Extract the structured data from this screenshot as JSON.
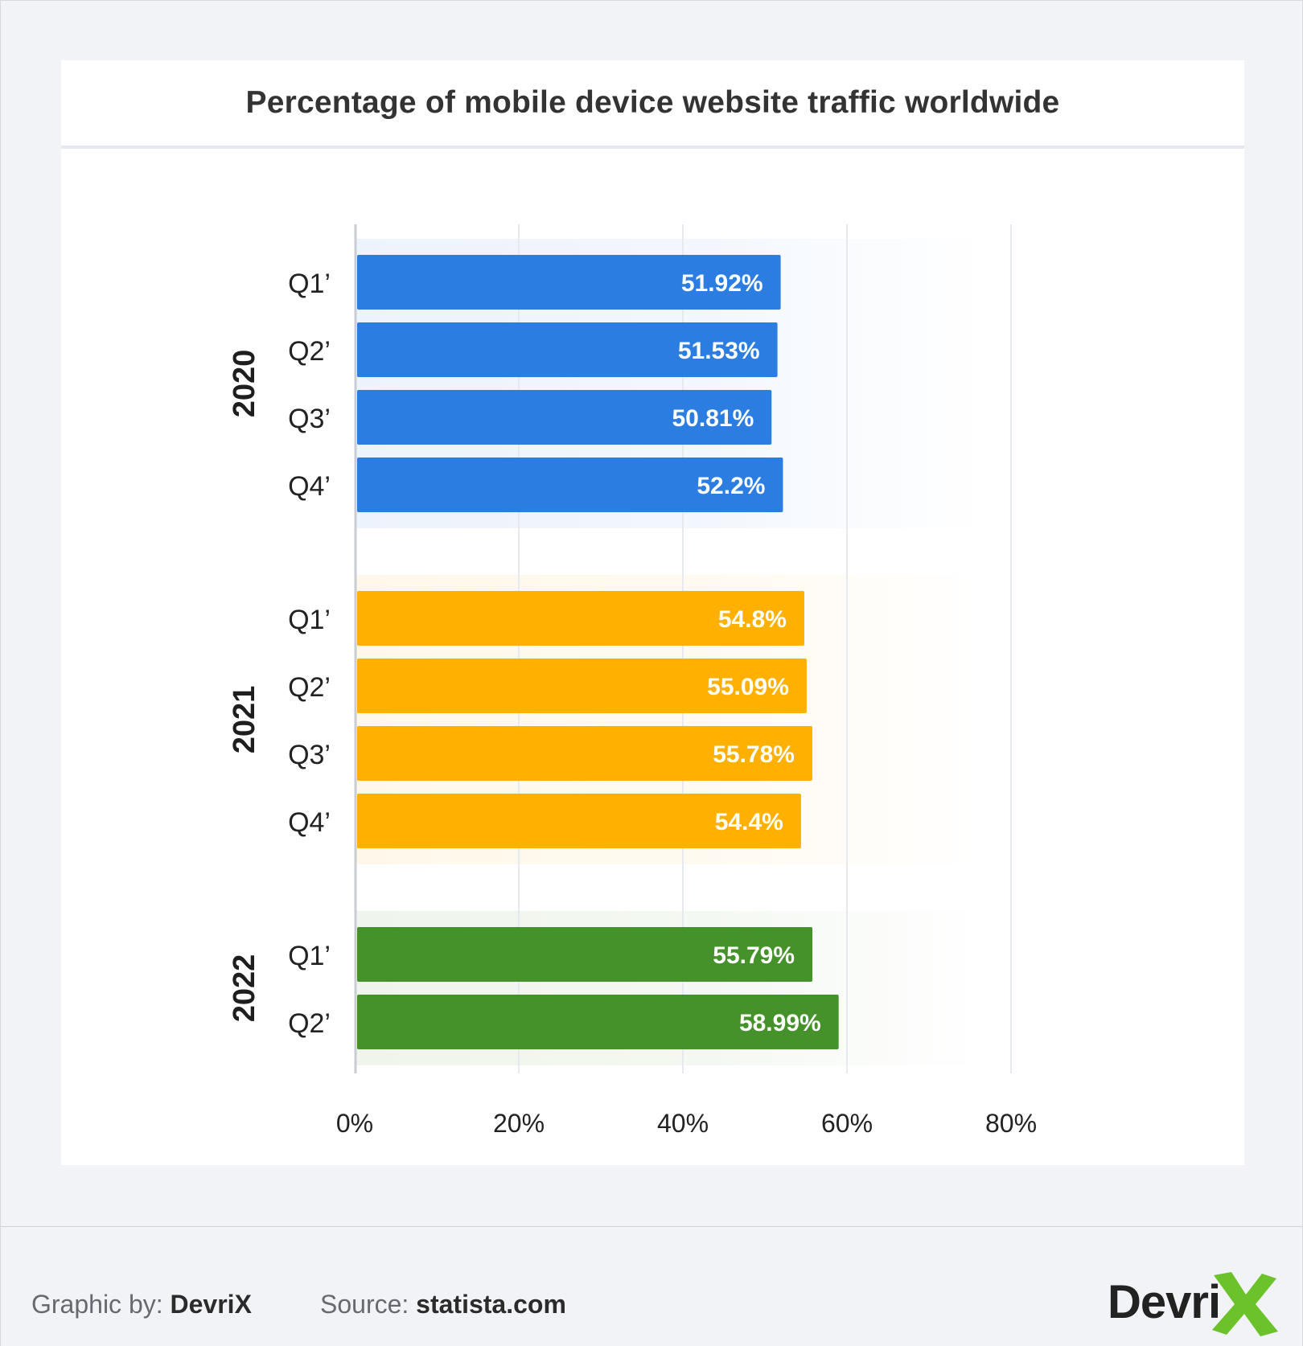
{
  "chart_data": {
    "type": "bar",
    "orientation": "horizontal",
    "title": "Percentage of mobile device website traffic worldwide",
    "groups": [
      {
        "name": "2020",
        "color": "#2b7de1",
        "band_color": "#edf3fc",
        "categories": [
          "Q1’",
          "Q2’",
          "Q3’",
          "Q4’"
        ],
        "values": [
          51.92,
          51.53,
          50.81,
          52.2
        ],
        "labels": [
          "51.92%",
          "51.53%",
          "50.81%",
          "52.2%"
        ]
      },
      {
        "name": "2021",
        "color": "#ffb000",
        "band_color": "#fff8ea",
        "categories": [
          "Q1’",
          "Q2’",
          "Q3’",
          "Q4’"
        ],
        "values": [
          54.8,
          55.09,
          55.78,
          54.4
        ],
        "labels": [
          "54.8%",
          "55.09%",
          "55.78%",
          "54.4%"
        ]
      },
      {
        "name": "2022",
        "color": "#45922a",
        "band_color": "#eff5ec",
        "categories": [
          "Q1’",
          "Q2’"
        ],
        "values": [
          55.79,
          58.99
        ],
        "labels": [
          "55.79%",
          "58.99%"
        ]
      }
    ],
    "x_ticks": [
      "0%",
      "20%",
      "40%",
      "60%",
      "80%"
    ],
    "x_tick_values": [
      0,
      20,
      40,
      60,
      80
    ],
    "xlim": [
      0,
      80
    ],
    "grid": true
  },
  "footer": {
    "graphic_label": "Graphic by:",
    "graphic_value": "DevriX",
    "source_label": "Source:",
    "source_value": "statista.com",
    "logo_text": "Devri"
  },
  "colors": {
    "blue": "#2b7de1",
    "yellow": "#ffb000",
    "green": "#45922a",
    "logo_green": "#6cc22a"
  }
}
